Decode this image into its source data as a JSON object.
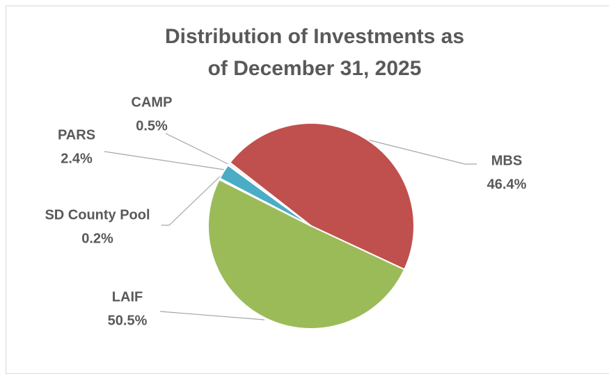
{
  "chart_data": {
    "type": "pie",
    "title": "Distribution of Investments as of December 31, 2025",
    "categories": [
      "MBS",
      "LAIF",
      "SD County Pool",
      "PARS",
      "CAMP"
    ],
    "values": [
      46.4,
      50.5,
      0.2,
      2.4,
      0.5
    ],
    "value_labels": [
      "46.4%",
      "50.5%",
      "0.2%",
      "2.4%",
      "0.5%"
    ],
    "colors": [
      "#c0504d",
      "#9bbb59",
      "#f2f2f2",
      "#4bacc6",
      "#f2f2f2"
    ]
  }
}
